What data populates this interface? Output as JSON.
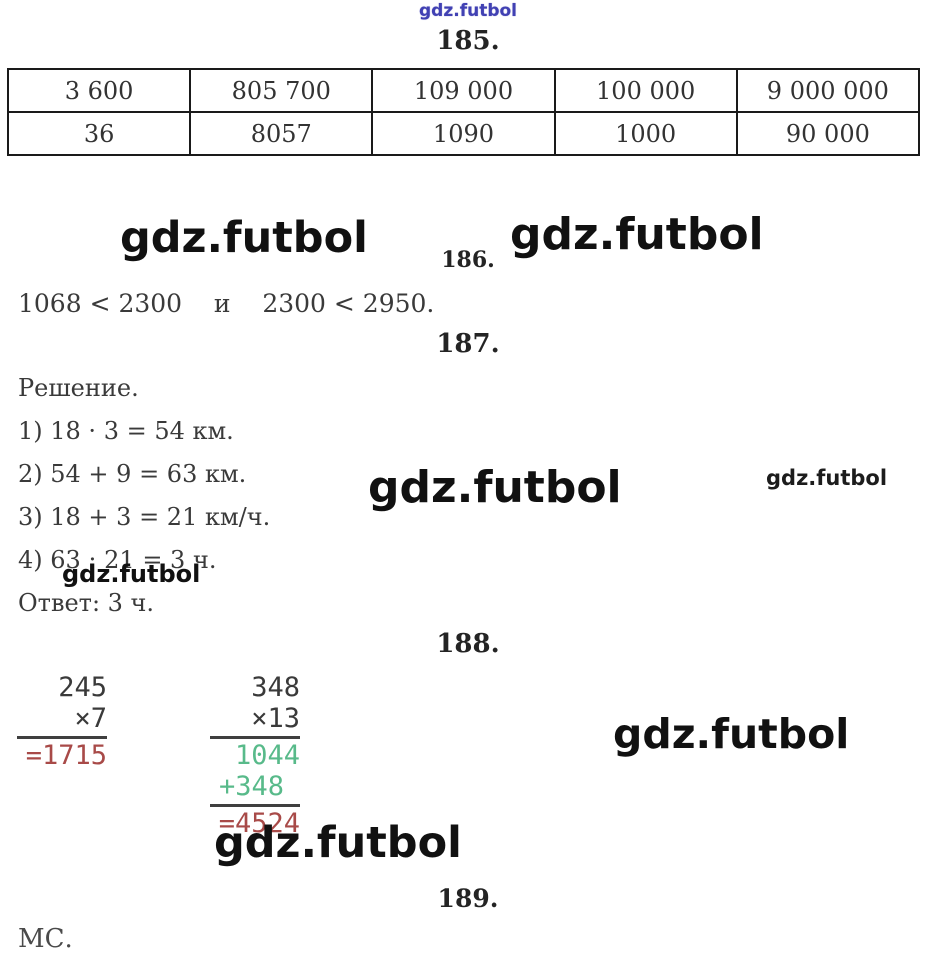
{
  "brand": {
    "text": "gdz.futbol",
    "top_color": "#4141b3",
    "watermark_color": "#111111"
  },
  "headings": {
    "t185": "185.",
    "t186": "186.",
    "t187": "187.",
    "t188": "188.",
    "t189": "189."
  },
  "table185": {
    "rows": [
      [
        "3 600",
        "805 700",
        "109 000",
        "100 000",
        "9 000 000"
      ],
      [
        "36",
        "8057",
        "1090",
        "1000",
        "90 000"
      ]
    ]
  },
  "task186": {
    "comparison": "1068 < 2300    и    2300 < 2950."
  },
  "task187": {
    "solution_label": "Решение.",
    "steps": [
      "1) 18 · 3 = 54 км.",
      "2) 54 + 9 = 63 км.",
      "3) 18 + 3 = 21 км/ч.",
      "4) 63 : 21 = 3 ч."
    ],
    "answer": "Ответ: 3 ч."
  },
  "task188": {
    "mult1": {
      "multiplicand": "245",
      "multiplier": "×7",
      "result": "=1715"
    },
    "mult2": {
      "multiplicand": "348",
      "multiplier": "×13",
      "partial1": "1044",
      "partial2": "+348",
      "result": "=4524"
    },
    "colors": {
      "green": "#58ba8a",
      "red": "#a84a48"
    }
  },
  "task189": {
    "note": "МС."
  }
}
